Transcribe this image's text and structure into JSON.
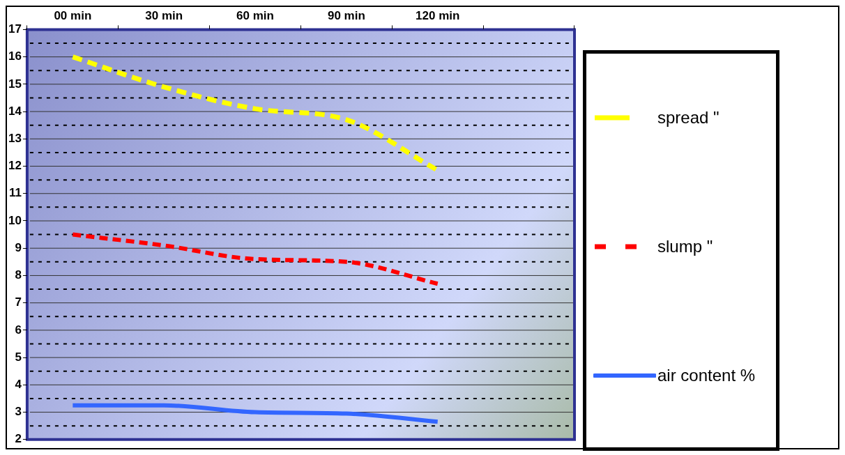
{
  "chart_data": {
    "type": "line",
    "categories": [
      "00 min",
      "30 min",
      "60 min",
      "90 min",
      "120 min",
      null
    ],
    "series": [
      {
        "name": "spread \"",
        "color": "#ffff00",
        "line_style": "dashed",
        "values": [
          16.0,
          14.9,
          14.1,
          13.7,
          11.85,
          null
        ]
      },
      {
        "name": "slump \"",
        "color": "#ff0000",
        "line_style": "dashed",
        "values": [
          9.5,
          9.1,
          8.6,
          8.5,
          7.7,
          null
        ]
      },
      {
        "name": "air content %",
        "color": "#3366ff",
        "line_style": "solid",
        "values": [
          3.25,
          3.25,
          3.0,
          2.95,
          2.65,
          null
        ]
      }
    ],
    "ylim": [
      2,
      17
    ],
    "yticks": [
      2,
      {
        "value": 2.5,
        "label": null
      },
      3,
      {
        "value": 3.5,
        "label": null
      },
      4,
      {
        "value": 4.5,
        "label": null
      },
      5,
      {
        "value": 5.5,
        "label": null
      },
      6,
      {
        "value": 6.5,
        "label": null
      },
      7,
      {
        "value": 7.5,
        "label": null
      },
      8,
      {
        "value": 8.5,
        "label": null
      },
      9,
      {
        "value": 9.5,
        "label": null
      },
      10,
      {
        "value": 10.5,
        "label": null
      },
      11,
      {
        "value": 11.5,
        "label": null
      },
      12,
      {
        "value": 12.5,
        "label": null
      },
      13,
      {
        "value": 13.5,
        "label": null
      },
      14,
      {
        "value": 14.5,
        "label": null
      },
      15,
      {
        "value": 15.5,
        "label": null
      },
      16,
      {
        "value": 16.5,
        "label": null
      },
      17
    ],
    "grid": "y",
    "legend": "right",
    "marker": "none"
  }
}
